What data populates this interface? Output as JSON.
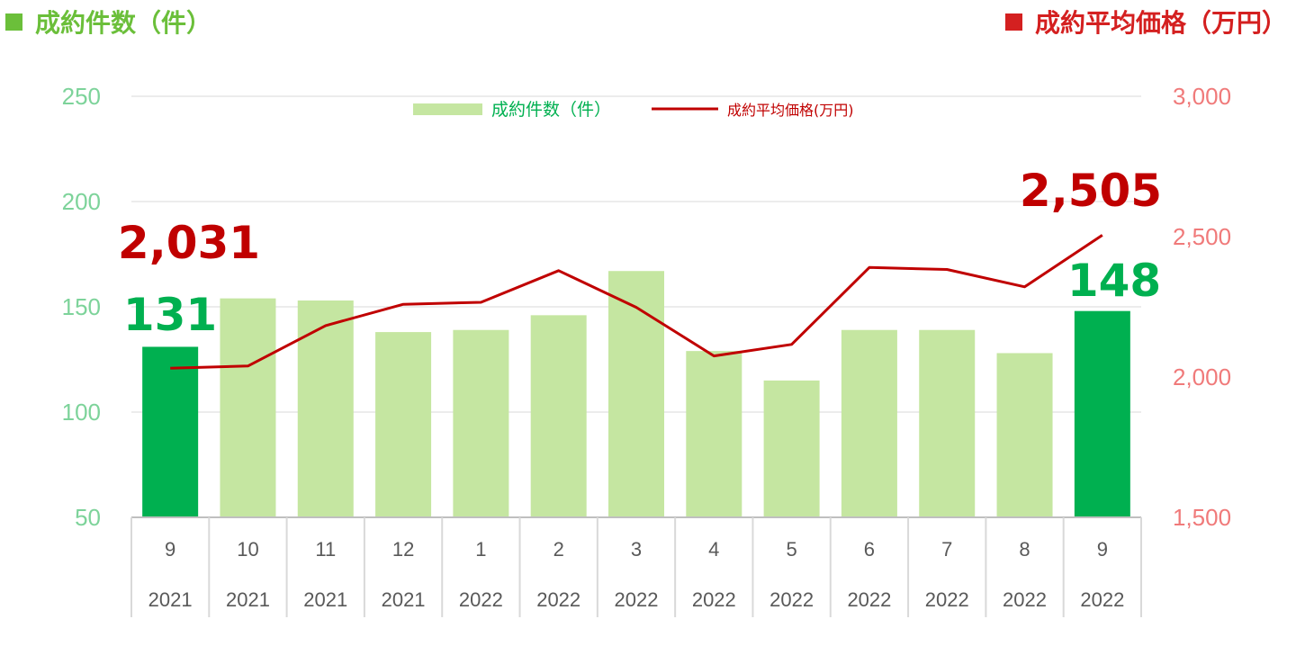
{
  "header": {
    "left_title": "成約件数（件）",
    "right_title": "成約平均価格（万円）"
  },
  "colors": {
    "bar": "#c5e6a1",
    "bar_highlight": "#00b050",
    "line": "#c00000",
    "left_axis": "#7dd39a",
    "right_axis": "#f07a7a"
  },
  "chart_data": {
    "type": "bar",
    "categories": [
      [
        "9",
        "2021"
      ],
      [
        "10",
        "2021"
      ],
      [
        "11",
        "2021"
      ],
      [
        "12",
        "2021"
      ],
      [
        "1",
        "2022"
      ],
      [
        "2",
        "2022"
      ],
      [
        "3",
        "2022"
      ],
      [
        "4",
        "2022"
      ],
      [
        "5",
        "2022"
      ],
      [
        "6",
        "2022"
      ],
      [
        "7",
        "2022"
      ],
      [
        "8",
        "2022"
      ],
      [
        "9",
        "2022"
      ]
    ],
    "series": [
      {
        "name": "成約件数（件）",
        "type": "bar",
        "axis": "left",
        "values": [
          131,
          154,
          153,
          138,
          139,
          146,
          167,
          129,
          115,
          139,
          139,
          128,
          148
        ],
        "highlight": [
          0,
          12
        ]
      },
      {
        "name": "成約平均価格(万円)",
        "type": "line",
        "axis": "right",
        "values": [
          2031,
          2039,
          2183,
          2259,
          2266,
          2379,
          2248,
          2075,
          2116,
          2390,
          2383,
          2321,
          2505
        ]
      }
    ],
    "y_left": {
      "min": 50,
      "max": 250,
      "ticks": [
        "50",
        "100",
        "150",
        "200",
        "250"
      ]
    },
    "y_right": {
      "min": 1500,
      "max": 3000,
      "ticks": [
        "1,500",
        "2,000",
        "2,500",
        "3,000"
      ]
    },
    "annotations": {
      "count_first": "131",
      "count_last": "148",
      "price_first": "2,031",
      "price_last": "2,505"
    },
    "legend": {
      "bar_label": "成約件数（件）",
      "line_label": "成約平均価格(万円)",
      "position": "top-center"
    },
    "grid": true
  }
}
